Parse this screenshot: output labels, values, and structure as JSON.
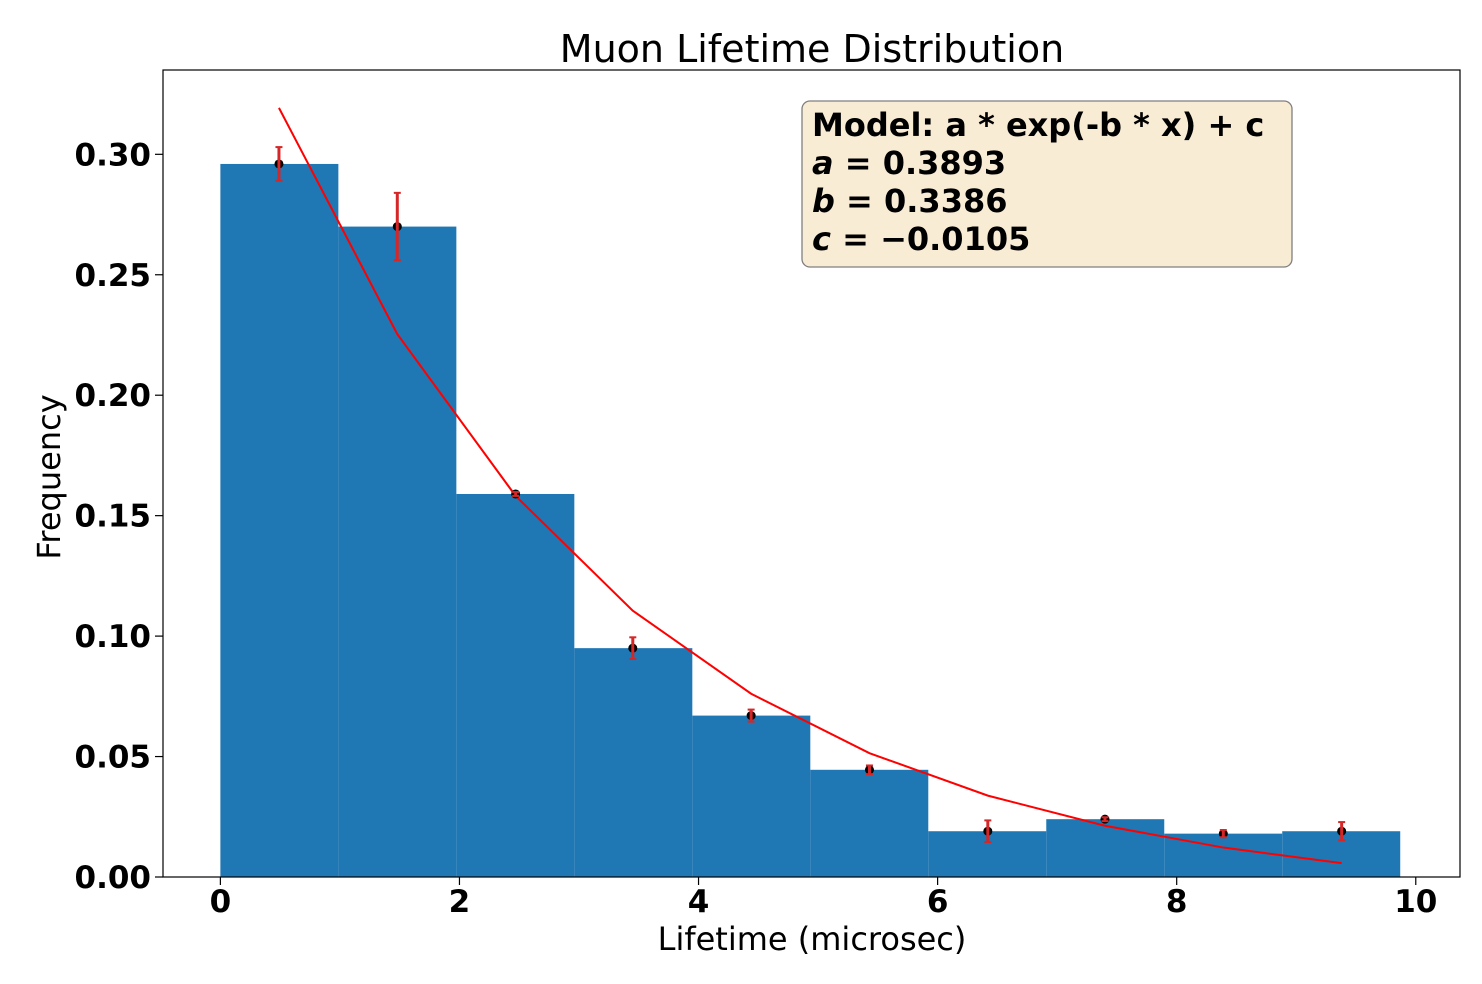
{
  "chart_data": {
    "type": "bar",
    "title": "Muon Lifetime Distribution",
    "xlabel": "Lifetime (microsec)",
    "ylabel": "Frequency",
    "xlim": [
      -0.48,
      10.37
    ],
    "ylim": [
      0.0,
      0.335
    ],
    "xticks": [
      0,
      2,
      4,
      6,
      8,
      10
    ],
    "xtick_labels": [
      "0",
      "2",
      "4",
      "6",
      "8",
      "10"
    ],
    "yticks": [
      0.0,
      0.05,
      0.1,
      0.15,
      0.2,
      0.25,
      0.3
    ],
    "ytick_labels": [
      "0.00",
      "0.05",
      "0.10",
      "0.15",
      "0.20",
      "0.25",
      "0.30"
    ],
    "grid": false,
    "bar_color": "#1f77b4",
    "fit_color": "#ff0000",
    "errorbar_color": "#d62728",
    "point_color": "#000000",
    "bins": [
      {
        "left": 0.0,
        "right": 0.987,
        "value": 0.296
      },
      {
        "left": 0.987,
        "right": 1.974,
        "value": 0.27
      },
      {
        "left": 1.974,
        "right": 2.961,
        "value": 0.159
      },
      {
        "left": 2.961,
        "right": 3.948,
        "value": 0.095
      },
      {
        "left": 3.948,
        "right": 4.935,
        "value": 0.067
      },
      {
        "left": 4.935,
        "right": 5.922,
        "value": 0.0445
      },
      {
        "left": 5.922,
        "right": 6.909,
        "value": 0.019
      },
      {
        "left": 6.909,
        "right": 7.896,
        "value": 0.024
      },
      {
        "left": 7.896,
        "right": 8.883,
        "value": 0.018
      },
      {
        "left": 8.883,
        "right": 9.87,
        "value": 0.019
      }
    ],
    "points": [
      {
        "x": 0.49,
        "y": 0.296,
        "err": 0.007
      },
      {
        "x": 1.48,
        "y": 0.27,
        "err": 0.014
      },
      {
        "x": 2.47,
        "y": 0.159,
        "err": 0.0008
      },
      {
        "x": 3.45,
        "y": 0.095,
        "err": 0.0045
      },
      {
        "x": 4.44,
        "y": 0.067,
        "err": 0.0025
      },
      {
        "x": 5.43,
        "y": 0.0445,
        "err": 0.0018
      },
      {
        "x": 6.42,
        "y": 0.019,
        "err": 0.0045
      },
      {
        "x": 7.4,
        "y": 0.024,
        "err": 0.0008
      },
      {
        "x": 8.39,
        "y": 0.018,
        "err": 0.0015
      },
      {
        "x": 9.38,
        "y": 0.019,
        "err": 0.0038
      }
    ],
    "fit": {
      "model": "a * exp(-b * x) + c",
      "a": 0.3893,
      "b": 0.3386,
      "c": -0.0105
    },
    "annotation": {
      "line1": "Model: a * exp(-b * x) + c",
      "line2_var": "a",
      "line2_val": " = 0.3893",
      "line3_var": "b",
      "line3_val": " = 0.3386",
      "line4_var": "c",
      "line4_val": " = −0.0105",
      "background": "#f9ecd5",
      "border": "#7f7f7f"
    }
  }
}
